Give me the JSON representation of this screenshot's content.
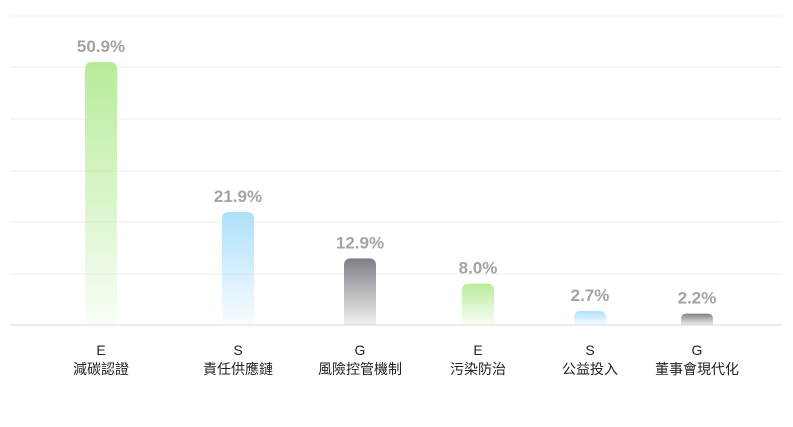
{
  "chart_data": {
    "type": "bar",
    "title": "",
    "xlabel": "",
    "ylabel": "",
    "ylim": [
      0,
      50.9
    ],
    "grid": true,
    "legend": "none",
    "categories": [
      {
        "pillar": "E",
        "name": "減碳認證"
      },
      {
        "pillar": "S",
        "name": "責任供應鏈"
      },
      {
        "pillar": "G",
        "name": "風險控管機制"
      },
      {
        "pillar": "E",
        "name": "污染防治"
      },
      {
        "pillar": "S",
        "name": "公益投入"
      },
      {
        "pillar": "G",
        "name": "董事會現代化"
      }
    ],
    "values": [
      50.9,
      21.9,
      12.9,
      8.0,
      2.7,
      2.2
    ],
    "value_labels": [
      "50.9%",
      "21.9%",
      "12.9%",
      "8.0%",
      "2.7%",
      "2.2%"
    ],
    "colors": {
      "E": "#b7ec9a",
      "S": "#aee0fb",
      "G": "#7f8186"
    }
  }
}
